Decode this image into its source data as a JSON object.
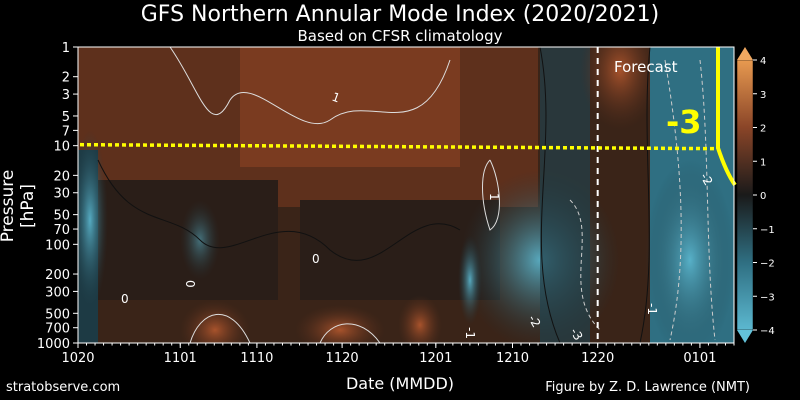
{
  "header": {
    "title": "GFS Northern Annular Mode Index (2020/2021)",
    "subtitle": "Based on CFSR climatology"
  },
  "footer": {
    "left": "stratobserve.com",
    "right": "Figure by Z. D. Lawrence (NMT)"
  },
  "chart_data": {
    "type": "heatmap",
    "title": "GFS Northern Annular Mode Index (2020/2021)",
    "subtitle": "Based on CFSR climatology",
    "xlabel": "Date (MMDD)",
    "ylabel": "Pressure [hPa]",
    "x_ticks": [
      "1020",
      "1101",
      "1110",
      "1120",
      "1201",
      "1210",
      "1220",
      "0101"
    ],
    "x_tick_days": [
      0,
      12,
      21,
      31,
      42,
      51,
      61,
      73
    ],
    "x_range_days": [
      0,
      77
    ],
    "y_scale": "log",
    "y_ticks": [
      1,
      2,
      3,
      5,
      7,
      10,
      20,
      30,
      50,
      70,
      100,
      200,
      300,
      500,
      700,
      1000
    ],
    "y_range": [
      1000,
      1
    ],
    "colorbar": {
      "ticks": [
        -4,
        -3,
        -2,
        -1,
        0,
        1,
        2,
        3,
        4
      ],
      "range": [
        -4,
        4
      ],
      "colors": {
        "strong_negative": "#4aa8c0",
        "weak_negative": "#1d3a44",
        "neutral": "#1c1c1c",
        "weak_positive": "#5a2e1c",
        "strong_positive": "#b55a30"
      }
    },
    "contour_labels": [
      "0",
      "1",
      "0",
      "1",
      "0",
      "-1",
      "-2",
      "-3",
      "-1",
      "-2"
    ],
    "forecast_label": "Forecast",
    "forecast_start_day": 61,
    "annotations": {
      "reference_line_pressure": 10,
      "reference_line_color": "#ffff00",
      "callout_text": "-3",
      "callout_color": "#ffff00"
    },
    "grid": false,
    "legend": "colorbar-right"
  }
}
